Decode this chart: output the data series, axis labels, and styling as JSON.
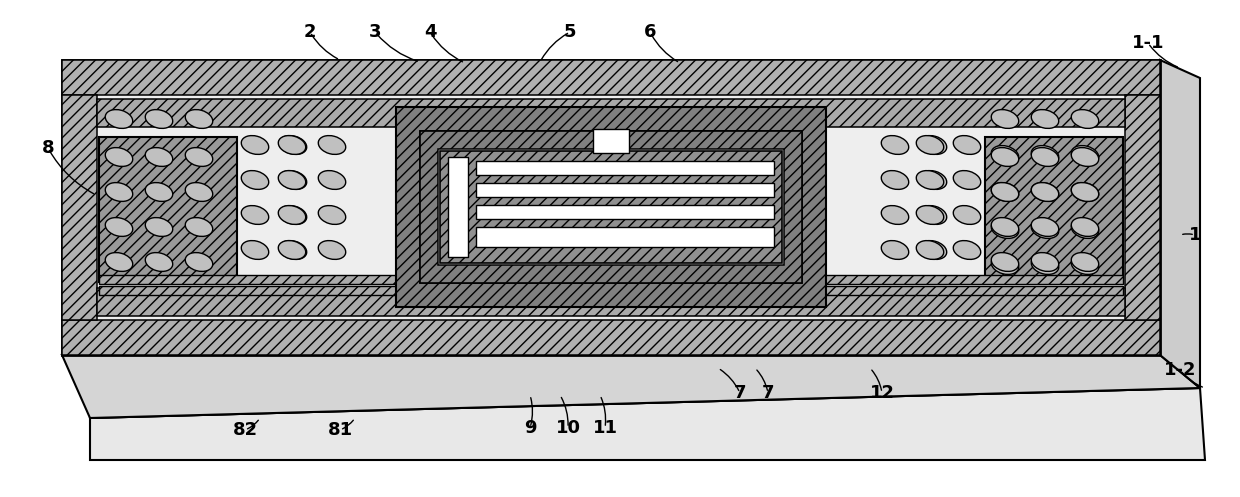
{
  "figure_width": 12.4,
  "figure_height": 4.97,
  "dpi": 100,
  "bg_color": "#ffffff",
  "black": "#000000",
  "white": "#ffffff",
  "gray_hatch": "#b0b0b0",
  "gray_light": "#e0e0e0",
  "gray_med": "#c0c0c0",
  "gray_dark": "#888888",
  "body_gray": "#d8d8d8",
  "label_fontsize": 13,
  "label_fontweight": "bold"
}
